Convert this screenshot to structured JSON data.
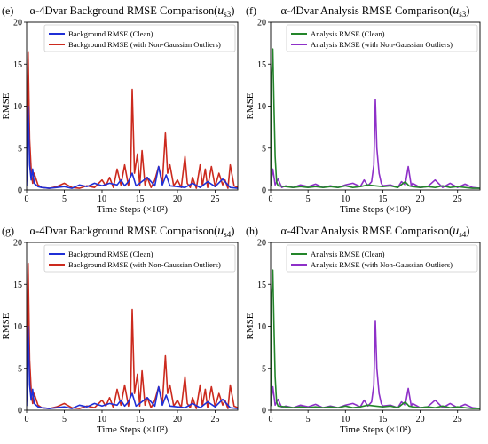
{
  "chart_data": [
    {
      "type": "line",
      "panel_label": "(e)",
      "title": "α-4Dvar Background RMSE Comparison(",
      "title_var": "u",
      "title_sub": "s3",
      "title_close": ")",
      "xlabel": "Time Steps (×10²)",
      "ylabel": "RMSE",
      "xlim": [
        0,
        28
      ],
      "ylim": [
        0,
        20
      ],
      "xticks": [
        0,
        5,
        10,
        15,
        20,
        25
      ],
      "yticks": [
        0,
        5,
        10,
        15,
        20
      ],
      "legend_position": "top-right",
      "series": [
        {
          "name": "Background RMSE (with Non-Gaussian Outliers)",
          "color": "#cc2a1e",
          "x": [
            0,
            0.2,
            0.4,
            0.6,
            0.8,
            1,
            1.5,
            2,
            3,
            4,
            5,
            6,
            7,
            8,
            9,
            10,
            10.5,
            11,
            11.5,
            12,
            12.5,
            13,
            13.5,
            13.8,
            14,
            14.3,
            14.7,
            15,
            15.3,
            15.7,
            16,
            16.5,
            17,
            17.5,
            18,
            18.4,
            18.7,
            19,
            19.5,
            20,
            20.5,
            21,
            21.3,
            21.7,
            22,
            22.5,
            23,
            23.3,
            23.7,
            24,
            24.5,
            25,
            25.5,
            26,
            26.3,
            26.7,
            27,
            27.5,
            28
          ],
          "y": [
            1,
            16.5,
            6,
            2.5,
            0.8,
            2,
            0.6,
            0.3,
            0.2,
            0.4,
            0.8,
            0.3,
            0.2,
            0.5,
            0.3,
            1.2,
            0.5,
            1.5,
            0.3,
            2.5,
            0.6,
            3,
            0.5,
            2,
            12,
            2,
            4.3,
            0.5,
            4.7,
            0.6,
            1.5,
            0.3,
            1.2,
            2.8,
            0.8,
            6.8,
            2,
            3,
            0.5,
            1.2,
            0.3,
            4,
            0.8,
            0.3,
            1.5,
            0.2,
            3,
            0.5,
            2.5,
            0.3,
            2.8,
            0.4,
            2,
            0.6,
            1.2,
            0.2,
            3,
            0.5,
            0.3
          ]
        },
        {
          "name": "Background RMSE (Clean)",
          "color": "#1f2fd6",
          "x": [
            0,
            0.2,
            0.4,
            0.6,
            0.8,
            1,
            1.5,
            2,
            3,
            4,
            5,
            6,
            7,
            8,
            9,
            10,
            11,
            12,
            12.5,
            13,
            13.5,
            14,
            14.5,
            15,
            16,
            17,
            17.5,
            18,
            18.5,
            19,
            20,
            21,
            22,
            23,
            24,
            25,
            26,
            27,
            28
          ],
          "y": [
            0.5,
            10,
            3,
            1.2,
            2.5,
            0.8,
            0.4,
            0.3,
            0.2,
            0.3,
            0.4,
            0.2,
            0.6,
            0.4,
            0.8,
            0.5,
            0.8,
            0.6,
            1.2,
            0.5,
            1,
            2,
            0.5,
            0.8,
            1.5,
            0.5,
            2.8,
            0.6,
            1.8,
            0.5,
            0.4,
            0.3,
            0.8,
            0.3,
            1,
            0.4,
            1.3,
            0.3,
            0.2
          ]
        }
      ]
    },
    {
      "type": "line",
      "panel_label": "(f)",
      "title": "α-4Dvar Analysis RMSE Comparison(",
      "title_var": "u",
      "title_sub": "s3",
      "title_close": ")",
      "xlabel": "Time Steps (×10²)",
      "ylabel": "RMSE",
      "xlim": [
        0,
        28
      ],
      "ylim": [
        0,
        20
      ],
      "xticks": [
        0,
        5,
        10,
        15,
        20,
        25
      ],
      "yticks": [
        0,
        5,
        10,
        15,
        20
      ],
      "legend_position": "top-right",
      "series": [
        {
          "name": "Analysis RMSE (with Non-Gaussian Outliers)",
          "color": "#8e30c8",
          "x": [
            0,
            0.3,
            0.6,
            1,
            1.5,
            2,
            3,
            4,
            5,
            6,
            7,
            8,
            9,
            10,
            11,
            12,
            12.5,
            13,
            13.5,
            13.8,
            14,
            14.2,
            14.5,
            14.8,
            15,
            16,
            17,
            17.5,
            18,
            18.4,
            18.8,
            19,
            20,
            21,
            22,
            23,
            24,
            25,
            26,
            27,
            28
          ],
          "y": [
            0.5,
            2.5,
            0.6,
            1.3,
            0.3,
            0.5,
            0.3,
            0.6,
            0.4,
            0.7,
            0.3,
            0.5,
            0.3,
            0.6,
            0.8,
            0.4,
            1.2,
            0.5,
            1,
            3,
            10.8,
            5,
            2,
            0.8,
            0.5,
            0.6,
            0.3,
            1,
            0.6,
            2.8,
            0.5,
            0.8,
            0.3,
            0.4,
            1.2,
            0.3,
            0.8,
            0.3,
            0.7,
            0.3,
            0.2
          ]
        },
        {
          "name": "Analysis RMSE (Clean)",
          "color": "#23852a",
          "x": [
            0,
            0.15,
            0.3,
            0.45,
            0.6,
            0.8,
            1,
            2,
            3,
            4,
            5,
            6,
            7,
            8,
            9,
            10,
            11,
            12,
            13,
            14,
            15,
            16,
            17,
            18,
            18.5,
            19,
            20,
            21,
            22,
            23,
            24,
            25,
            26,
            27,
            28
          ],
          "y": [
            0.5,
            14,
            16.8,
            10,
            4,
            1,
            0.5,
            0.4,
            0.3,
            0.4,
            0.3,
            0.4,
            0.3,
            0.4,
            0.3,
            0.5,
            0.3,
            0.4,
            0.6,
            0.5,
            0.4,
            0.5,
            0.3,
            1,
            0.5,
            0.4,
            0.3,
            0.4,
            0.3,
            0.5,
            0.3,
            0.4,
            0.3,
            0.2,
            0.2
          ]
        }
      ]
    },
    {
      "type": "line",
      "panel_label": "(g)",
      "title": "α-4Dvar Background RMSE Comparison(",
      "title_var": "u",
      "title_sub": "s4",
      "title_close": ")",
      "xlabel": "Time Steps (×10²)",
      "ylabel": "RMSE",
      "xlim": [
        0,
        28
      ],
      "ylim": [
        0,
        20
      ],
      "xticks": [
        0,
        5,
        10,
        15,
        20,
        25
      ],
      "yticks": [
        0,
        5,
        10,
        15,
        20
      ],
      "legend_position": "top-right",
      "series": [
        {
          "name": "Background RMSE (with Non-Gaussian Outliers)",
          "color": "#cc2a1e",
          "x": [
            0,
            0.2,
            0.4,
            0.6,
            0.8,
            1,
            1.5,
            2,
            3,
            4,
            5,
            6,
            7,
            8,
            9,
            10,
            10.5,
            11,
            11.5,
            12,
            12.5,
            13,
            13.5,
            13.8,
            14,
            14.3,
            14.7,
            15,
            15.3,
            15.7,
            16,
            16.5,
            17,
            17.5,
            18,
            18.4,
            18.7,
            19,
            19.5,
            20,
            20.5,
            21,
            21.3,
            21.7,
            22,
            22.5,
            23,
            23.3,
            23.7,
            24,
            24.5,
            25,
            25.5,
            26,
            26.3,
            26.7,
            27,
            27.5,
            28
          ],
          "y": [
            1,
            17.5,
            6,
            2.5,
            0.8,
            2,
            0.6,
            0.3,
            0.2,
            0.4,
            0.8,
            0.3,
            0.2,
            0.5,
            0.3,
            1.2,
            0.5,
            1.5,
            0.3,
            2.5,
            0.6,
            3,
            0.5,
            2,
            12,
            2,
            4.3,
            0.5,
            4.7,
            0.6,
            1.5,
            0.3,
            1.2,
            2.8,
            0.8,
            6.5,
            2,
            3,
            0.5,
            1.2,
            0.3,
            4,
            0.8,
            0.3,
            1.5,
            0.2,
            3,
            0.5,
            2.5,
            0.3,
            2.8,
            0.4,
            2,
            0.6,
            1.2,
            0.2,
            3,
            0.5,
            0.3
          ]
        },
        {
          "name": "Background RMSE (Clean)",
          "color": "#1f2fd6",
          "x": [
            0,
            0.2,
            0.4,
            0.6,
            0.8,
            1,
            1.5,
            2,
            3,
            4,
            5,
            6,
            7,
            8,
            9,
            10,
            11,
            12,
            12.5,
            13,
            13.5,
            14,
            14.5,
            15,
            16,
            17,
            17.5,
            18,
            18.5,
            19,
            20,
            21,
            22,
            23,
            24,
            25,
            26,
            27,
            28
          ],
          "y": [
            0.5,
            10,
            3,
            1.2,
            2.5,
            0.8,
            0.4,
            0.3,
            0.2,
            0.3,
            0.4,
            0.2,
            0.6,
            0.4,
            0.8,
            0.5,
            0.8,
            0.6,
            1.2,
            0.5,
            1,
            2,
            0.5,
            0.8,
            1.5,
            0.5,
            2.8,
            0.6,
            1.8,
            0.5,
            0.4,
            0.3,
            0.8,
            0.3,
            1,
            0.4,
            1.3,
            0.3,
            0.2
          ]
        }
      ]
    },
    {
      "type": "line",
      "panel_label": "(h)",
      "title": "α-4Dvar Analysis RMSE Comparison(",
      "title_var": "u",
      "title_sub": "s4",
      "title_close": ")",
      "xlabel": "Time Steps (×10²)",
      "ylabel": "RMSE",
      "xlim": [
        0,
        28
      ],
      "ylim": [
        0,
        20
      ],
      "xticks": [
        0,
        5,
        10,
        15,
        20,
        25
      ],
      "yticks": [
        0,
        5,
        10,
        15,
        20
      ],
      "legend_position": "top-right",
      "series": [
        {
          "name": "Analysis RMSE (with Non-Gaussian Outliers)",
          "color": "#8e30c8",
          "x": [
            0,
            0.3,
            0.6,
            1,
            1.5,
            2,
            3,
            4,
            5,
            6,
            7,
            8,
            9,
            10,
            11,
            12,
            12.5,
            13,
            13.5,
            13.8,
            14,
            14.2,
            14.5,
            14.8,
            15,
            16,
            17,
            17.5,
            18,
            18.4,
            18.8,
            19,
            20,
            21,
            22,
            23,
            24,
            25,
            26,
            27,
            28
          ],
          "y": [
            0.5,
            2.8,
            0.6,
            1.3,
            0.3,
            0.5,
            0.3,
            0.6,
            0.4,
            0.7,
            0.3,
            0.5,
            0.3,
            0.6,
            0.8,
            0.4,
            1.2,
            0.5,
            1,
            3,
            10.7,
            5,
            2,
            0.8,
            0.5,
            0.6,
            0.3,
            1,
            0.6,
            2.6,
            0.5,
            0.8,
            0.3,
            0.4,
            1.2,
            0.3,
            0.8,
            0.3,
            0.7,
            0.3,
            0.2
          ]
        },
        {
          "name": "Analysis RMSE (Clean)",
          "color": "#23852a",
          "x": [
            0,
            0.15,
            0.3,
            0.45,
            0.6,
            0.8,
            1,
            2,
            3,
            4,
            5,
            6,
            7,
            8,
            9,
            10,
            11,
            12,
            13,
            14,
            15,
            16,
            17,
            18,
            18.5,
            19,
            20,
            21,
            22,
            23,
            24,
            25,
            26,
            27,
            28
          ],
          "y": [
            0.5,
            14,
            16.7,
            10,
            4,
            1,
            0.5,
            0.4,
            0.3,
            0.4,
            0.3,
            0.4,
            0.3,
            0.4,
            0.3,
            0.5,
            0.3,
            0.4,
            0.6,
            0.5,
            0.4,
            0.5,
            0.3,
            1,
            0.5,
            0.4,
            0.3,
            0.4,
            0.3,
            0.5,
            0.3,
            0.4,
            0.3,
            0.2,
            0.2
          ]
        }
      ]
    }
  ]
}
